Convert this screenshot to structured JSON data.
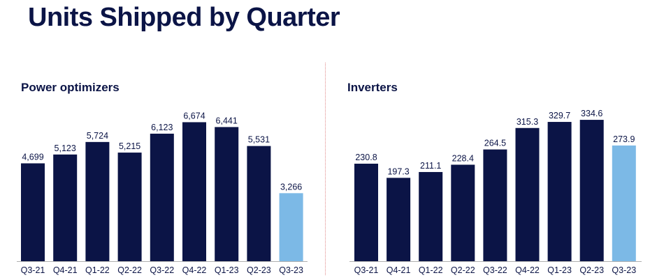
{
  "title": "Units Shipped by Quarter",
  "colors": {
    "dark_bar": "#0b1446",
    "highlight_bar": "#7cb9e6",
    "axis": "#b0b0b0",
    "divider": "#e08a8a"
  },
  "chart_data": [
    {
      "type": "bar",
      "title": "Power optimizers",
      "categories": [
        "Q3-21",
        "Q4-21",
        "Q1-22",
        "Q2-22",
        "Q3-22",
        "Q4-22",
        "Q1-23",
        "Q2-23",
        "Q3-23"
      ],
      "values": [
        4699,
        5123,
        5724,
        5215,
        6123,
        6674,
        6441,
        5531,
        3266
      ],
      "labels": [
        "4,699",
        "5,123",
        "5,724",
        "5,215",
        "6,123",
        "6,674",
        "6,441",
        "5,531",
        "3,266"
      ],
      "highlight_index": 8,
      "ylim": [
        0,
        7000
      ]
    },
    {
      "type": "bar",
      "title": "Inverters",
      "categories": [
        "Q3-21",
        "Q4-21",
        "Q1-22",
        "Q2-22",
        "Q3-22",
        "Q4-22",
        "Q1-23",
        "Q2-23",
        "Q3-23"
      ],
      "values": [
        230.8,
        197.3,
        211.1,
        228.4,
        264.5,
        315.3,
        329.7,
        334.6,
        273.9
      ],
      "labels": [
        "230.8",
        "197.3",
        "211.1",
        "228.4",
        "264.5",
        "315.3",
        "329.7",
        "334.6",
        "273.9"
      ],
      "highlight_index": 8,
      "ylim": [
        0,
        350
      ]
    }
  ]
}
